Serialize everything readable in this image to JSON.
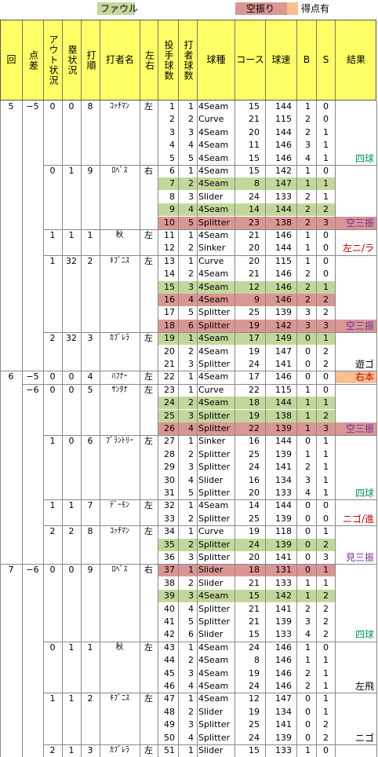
{
  "legend": [
    {
      "label": "ファウル",
      "color": "#c4d79b"
    },
    {
      "label": "空振り",
      "color": "#da9694"
    },
    {
      "label": "得点有",
      "color": "#fabf8f"
    }
  ],
  "headers": {
    "inning": "回",
    "score_diff": "点差",
    "out_state": "アウト状況",
    "base_state": "塁状況",
    "batting_order": "打順",
    "batter": "打者名",
    "lr": "左右",
    "pitch_no": "投手球数",
    "batter_pitch_no": "打者球数",
    "pitch_type": "球種",
    "course": "コース",
    "speed": "球速",
    "b": "B",
    "s": "S",
    "result": "結果"
  },
  "pitches": [
    {
      "inn": "5",
      "diff": "−5",
      "out": "0",
      "base": "0",
      "ord": "8",
      "name": "ｺｯﾁﾏﾝ",
      "lr": "左",
      "n": "1",
      "bn": "1",
      "type": "4Seam",
      "course": "15",
      "speed": "144",
      "b": "1",
      "s": "0",
      "res": "",
      "hl": ""
    },
    {
      "n": "2",
      "bn": "2",
      "type": "Curve",
      "course": "21",
      "speed": "115",
      "b": "2",
      "s": "0",
      "res": "",
      "hl": ""
    },
    {
      "n": "3",
      "bn": "3",
      "type": "4Seam",
      "course": "20",
      "speed": "144",
      "b": "2",
      "s": "1",
      "res": "",
      "hl": ""
    },
    {
      "n": "4",
      "bn": "4",
      "type": "4Seam",
      "course": "11",
      "speed": "146",
      "b": "3",
      "s": "1",
      "res": "",
      "hl": ""
    },
    {
      "n": "5",
      "bn": "5",
      "type": "4Seam",
      "course": "15",
      "speed": "146",
      "b": "4",
      "s": "1",
      "res": "四球",
      "rc": "#009966",
      "hl": ""
    },
    {
      "out": "0",
      "base": "1",
      "ord": "9",
      "name": "ﾛﾍﾞｽ",
      "lr": "右",
      "n": "6",
      "bn": "1",
      "type": "4Seam",
      "course": "15",
      "speed": "142",
      "b": "1",
      "s": "0",
      "res": "",
      "hl": ""
    },
    {
      "n": "7",
      "bn": "2",
      "type": "4Seam",
      "course": "8",
      "speed": "147",
      "b": "1",
      "s": "1",
      "res": "",
      "hl": "f"
    },
    {
      "n": "8",
      "bn": "3",
      "type": "Slider",
      "course": "24",
      "speed": "133",
      "b": "2",
      "s": "1",
      "res": "",
      "hl": ""
    },
    {
      "n": "9",
      "bn": "4",
      "type": "4Seam",
      "course": "14",
      "speed": "144",
      "b": "2",
      "s": "2",
      "res": "",
      "hl": "f"
    },
    {
      "n": "10",
      "bn": "5",
      "type": "Splitter",
      "course": "23",
      "speed": "138",
      "b": "2",
      "s": "3",
      "res": "空三振",
      "rc": "#7030a0",
      "hl": "w"
    },
    {
      "out": "1",
      "base": "1",
      "ord": "1",
      "name": "秋",
      "lr": "左",
      "n": "11",
      "bn": "1",
      "type": "4Seam",
      "course": "21",
      "speed": "146",
      "b": "1",
      "s": "0",
      "res": "",
      "hl": ""
    },
    {
      "n": "12",
      "bn": "2",
      "type": "Sinker",
      "course": "20",
      "speed": "144",
      "b": "1",
      "s": "0",
      "res": "左ニ/ラ",
      "rc": "#c00000",
      "hl": ""
    },
    {
      "out": "1",
      "base": "32",
      "ord": "2",
      "name": "ｷﾌﾞﾆｽ",
      "lr": "左",
      "n": "13",
      "bn": "1",
      "type": "Curve",
      "course": "20",
      "speed": "115",
      "b": "1",
      "s": "0",
      "res": "",
      "hl": ""
    },
    {
      "n": "14",
      "bn": "2",
      "type": "4Seam",
      "course": "21",
      "speed": "146",
      "b": "2",
      "s": "0",
      "res": "",
      "hl": ""
    },
    {
      "n": "15",
      "bn": "3",
      "type": "4Seam",
      "course": "12",
      "speed": "146",
      "b": "2",
      "s": "1",
      "res": "",
      "hl": "f"
    },
    {
      "n": "16",
      "bn": "4",
      "type": "4Seam",
      "course": "9",
      "speed": "146",
      "b": "2",
      "s": "2",
      "res": "",
      "hl": "w"
    },
    {
      "n": "17",
      "bn": "5",
      "type": "Splitter",
      "course": "25",
      "speed": "139",
      "b": "3",
      "s": "2",
      "res": "",
      "hl": ""
    },
    {
      "n": "18",
      "bn": "6",
      "type": "Splitter",
      "course": "19",
      "speed": "142",
      "b": "3",
      "s": "3",
      "res": "空三振",
      "rc": "#7030a0",
      "hl": "w"
    },
    {
      "out": "2",
      "base": "32",
      "ord": "3",
      "name": "ｶﾌﾞﾚﾗ",
      "lr": "左",
      "n": "19",
      "bn": "1",
      "type": "4Seam",
      "course": "17",
      "speed": "149",
      "b": "0",
      "s": "1",
      "res": "",
      "hl": "f"
    },
    {
      "n": "20",
      "bn": "2",
      "type": "4Seam",
      "course": "19",
      "speed": "147",
      "b": "0",
      "s": "2",
      "res": "",
      "hl": ""
    },
    {
      "n": "21",
      "bn": "3",
      "type": "Splitter",
      "course": "24",
      "speed": "141",
      "b": "0",
      "s": "2",
      "res": "遊ゴ",
      "rc": "#000000",
      "hl": ""
    },
    {
      "inn": "6",
      "diff": "−5",
      "out": "0",
      "base": "0",
      "ord": "4",
      "name": "ﾊﾌﾅｰ",
      "lr": "左",
      "n": "22",
      "bn": "1",
      "type": "4Seam",
      "course": "17",
      "speed": "146",
      "b": "0",
      "s": "0",
      "res": "右本",
      "rc": "#c00000",
      "hl": "",
      "rb": "#fabf8f"
    },
    {
      "diff": "−6",
      "out": "0",
      "base": "0",
      "ord": "5",
      "name": "ｻﾝﾀﾅ",
      "lr": "左",
      "n": "23",
      "bn": "1",
      "type": "Curve",
      "course": "22",
      "speed": "115",
      "b": "1",
      "s": "0",
      "res": "",
      "hl": ""
    },
    {
      "n": "24",
      "bn": "2",
      "type": "4Seam",
      "course": "18",
      "speed": "144",
      "b": "1",
      "s": "1",
      "res": "",
      "hl": "f"
    },
    {
      "n": "25",
      "bn": "3",
      "type": "Splitter",
      "course": "19",
      "speed": "138",
      "b": "1",
      "s": "2",
      "res": "",
      "hl": "f"
    },
    {
      "n": "26",
      "bn": "4",
      "type": "Splitter",
      "course": "22",
      "speed": "139",
      "b": "1",
      "s": "3",
      "res": "空三振",
      "rc": "#7030a0",
      "hl": "w"
    },
    {
      "out": "1",
      "base": "0",
      "ord": "6",
      "name": "ﾌﾞﾗﾝﾄﾘｰ",
      "lr": "左",
      "n": "27",
      "bn": "1",
      "type": "Sinker",
      "course": "16",
      "speed": "144",
      "b": "0",
      "s": "1",
      "res": "",
      "hl": ""
    },
    {
      "n": "28",
      "bn": "2",
      "type": "Splitter",
      "course": "25",
      "speed": "139",
      "b": "1",
      "s": "1",
      "res": "",
      "hl": ""
    },
    {
      "n": "29",
      "bn": "3",
      "type": "Splitter",
      "course": "24",
      "speed": "141",
      "b": "2",
      "s": "1",
      "res": "",
      "hl": ""
    },
    {
      "n": "30",
      "bn": "4",
      "type": "Slider",
      "course": "16",
      "speed": "134",
      "b": "3",
      "s": "1",
      "res": "",
      "hl": ""
    },
    {
      "n": "31",
      "bn": "5",
      "type": "Splitter",
      "course": "20",
      "speed": "133",
      "b": "4",
      "s": "1",
      "res": "四球",
      "rc": "#009966",
      "hl": ""
    },
    {
      "out": "1",
      "base": "1",
      "ord": "7",
      "name": "ﾃﾞｰﾓﾝ",
      "lr": "左",
      "n": "32",
      "bn": "1",
      "type": "4Seam",
      "course": "14",
      "speed": "144",
      "b": "0",
      "s": "0",
      "res": "",
      "hl": ""
    },
    {
      "n": "33",
      "bn": "2",
      "type": "Splitter",
      "course": "25",
      "speed": "139",
      "b": "0",
      "s": "0",
      "res": "ニゴ/進",
      "rc": "#c00000",
      "hl": ""
    },
    {
      "out": "2",
      "base": "2",
      "ord": "8",
      "name": "ｺｯﾁﾏﾝ",
      "lr": "左",
      "n": "34",
      "bn": "1",
      "type": "Curve",
      "course": "19",
      "speed": "118",
      "b": "0",
      "s": "1",
      "res": "",
      "hl": ""
    },
    {
      "n": "35",
      "bn": "2",
      "type": "Splitter",
      "course": "24",
      "speed": "139",
      "b": "0",
      "s": "2",
      "res": "",
      "hl": "f"
    },
    {
      "n": "36",
      "bn": "3",
      "type": "Splitter",
      "course": "20",
      "speed": "141",
      "b": "0",
      "s": "3",
      "res": "見三振",
      "rc": "#7030a0",
      "hl": ""
    },
    {
      "inn": "7",
      "diff": "−6",
      "out": "0",
      "base": "0",
      "ord": "9",
      "name": "ﾛﾍﾞｽ",
      "lr": "右",
      "n": "37",
      "bn": "1",
      "type": "Slider",
      "course": "18",
      "speed": "131",
      "b": "0",
      "s": "1",
      "res": "",
      "hl": "w"
    },
    {
      "n": "38",
      "bn": "2",
      "type": "Slider",
      "course": "21",
      "speed": "133",
      "b": "1",
      "s": "1",
      "res": "",
      "hl": ""
    },
    {
      "n": "39",
      "bn": "3",
      "type": "4Seam",
      "course": "15",
      "speed": "142",
      "b": "1",
      "s": "2",
      "res": "",
      "hl": "f"
    },
    {
      "n": "40",
      "bn": "4",
      "type": "Splitter",
      "course": "21",
      "speed": "141",
      "b": "2",
      "s": "2",
      "res": "",
      "hl": ""
    },
    {
      "n": "41",
      "bn": "5",
      "type": "Splitter",
      "course": "21",
      "speed": "139",
      "b": "3",
      "s": "2",
      "res": "",
      "hl": ""
    },
    {
      "n": "42",
      "bn": "6",
      "type": "Slider",
      "course": "15",
      "speed": "133",
      "b": "4",
      "s": "2",
      "res": "四球",
      "rc": "#009966",
      "hl": ""
    },
    {
      "out": "0",
      "base": "1",
      "ord": "1",
      "name": "秋",
      "lr": "左",
      "n": "43",
      "bn": "1",
      "type": "4Seam",
      "course": "24",
      "speed": "146",
      "b": "1",
      "s": "0",
      "res": "",
      "hl": ""
    },
    {
      "n": "44",
      "bn": "2",
      "type": "4Seam",
      "course": "8",
      "speed": "146",
      "b": "1",
      "s": "1",
      "res": "",
      "hl": ""
    },
    {
      "n": "45",
      "bn": "3",
      "type": "4Seam",
      "course": "19",
      "speed": "146",
      "b": "2",
      "s": "1",
      "res": "",
      "hl": ""
    },
    {
      "n": "46",
      "bn": "4",
      "type": "4Seam",
      "course": "24",
      "speed": "146",
      "b": "2",
      "s": "1",
      "res": "左飛",
      "rc": "#000000",
      "hl": ""
    },
    {
      "out": "1",
      "base": "1",
      "ord": "2",
      "name": "ｷﾌﾞﾆｽ",
      "lr": "左",
      "n": "47",
      "bn": "1",
      "type": "4Seam",
      "course": "12",
      "speed": "147",
      "b": "0",
      "s": "1",
      "res": "",
      "hl": ""
    },
    {
      "n": "48",
      "bn": "2",
      "type": "Slider",
      "course": "19",
      "speed": "134",
      "b": "0",
      "s": "1",
      "res": "",
      "hl": ""
    },
    {
      "n": "49",
      "bn": "3",
      "type": "Splitter",
      "course": "25",
      "speed": "141",
      "b": "0",
      "s": "2",
      "res": "",
      "hl": ""
    },
    {
      "n": "50",
      "bn": "4",
      "type": "Splitter",
      "course": "24",
      "speed": "139",
      "b": "0",
      "s": "2",
      "res": "ニゴ",
      "rc": "#000000",
      "hl": ""
    },
    {
      "out": "2",
      "base": "1",
      "ord": "3",
      "name": "ｶﾌﾞﾚﾗ",
      "lr": "左",
      "n": "51",
      "bn": "1",
      "type": "Slider",
      "course": "15",
      "speed": "133",
      "b": "1",
      "s": "0",
      "res": "",
      "hl": ""
    }
  ],
  "colors": {
    "header_bg": "#ffff66",
    "foul": "#c4d79b",
    "whiff": "#da9694",
    "scored": "#fabf8f"
  }
}
